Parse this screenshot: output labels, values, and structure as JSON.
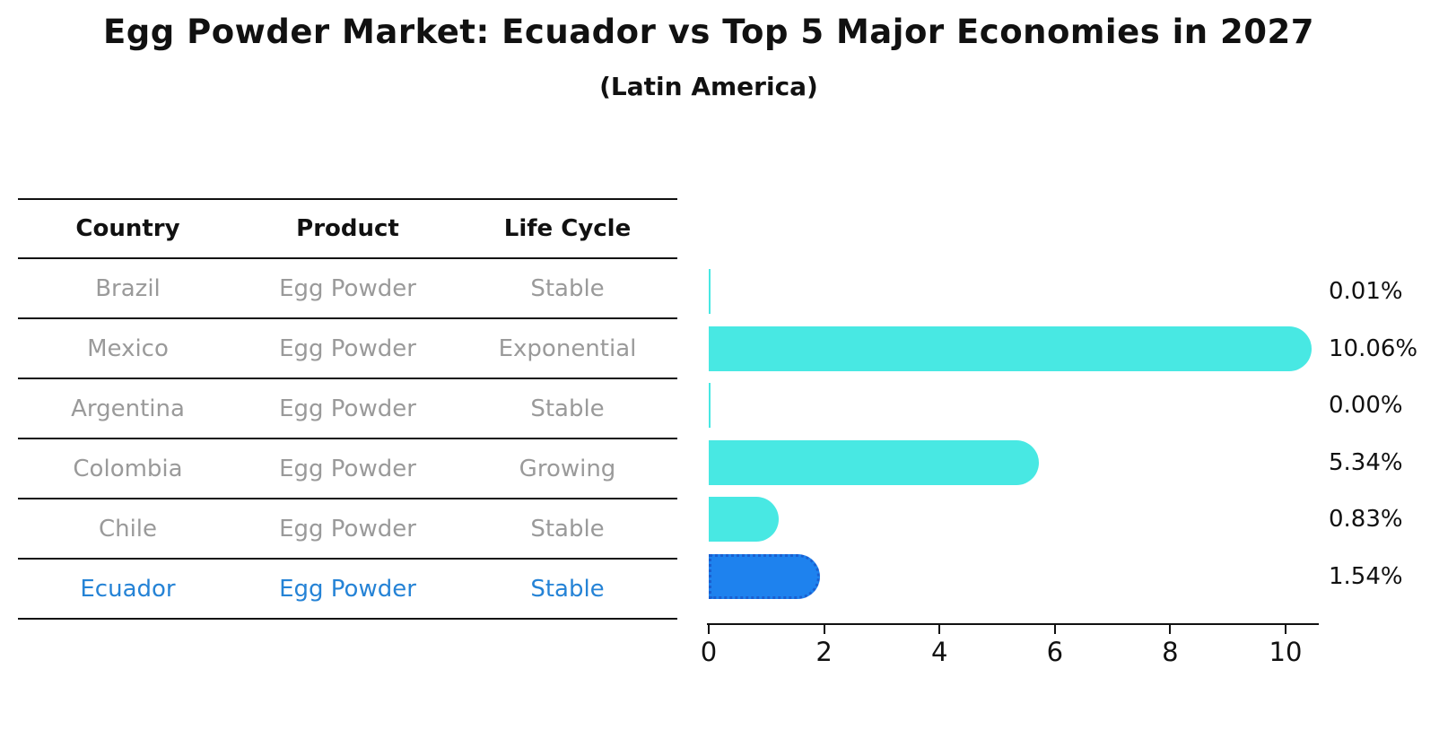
{
  "page": {
    "title": "Egg Powder Market: Ecuador vs Top 5 Major Economies in 2027",
    "subtitle": "(Latin America)"
  },
  "table": {
    "headers": [
      "Country",
      "Product",
      "Life Cycle"
    ],
    "rows": [
      {
        "country": "Brazil",
        "product": "Egg Powder",
        "life_cycle": "Stable",
        "highlighted": false
      },
      {
        "country": "Mexico",
        "product": "Egg Powder",
        "life_cycle": "Exponential",
        "highlighted": false
      },
      {
        "country": "Argentina",
        "product": "Egg Powder",
        "life_cycle": "Stable",
        "highlighted": false
      },
      {
        "country": "Colombia",
        "product": "Egg Powder",
        "life_cycle": "Growing",
        "highlighted": false
      },
      {
        "country": "Chile",
        "product": "Egg Powder",
        "life_cycle": "Stable",
        "highlighted": false
      },
      {
        "country": "Ecuador",
        "product": "Egg Powder",
        "life_cycle": "Stable",
        "highlighted": true
      }
    ]
  },
  "chart_data": {
    "type": "bar",
    "orientation": "horizontal",
    "title": "Egg Powder Market: Ecuador vs Top 5 Major Economies in 2027",
    "subtitle": "(Latin America)",
    "categories": [
      "Brazil",
      "Mexico",
      "Argentina",
      "Colombia",
      "Chile",
      "Ecuador"
    ],
    "values": [
      0.01,
      10.06,
      0.0,
      5.34,
      0.83,
      1.54
    ],
    "value_labels": [
      "0.01%",
      "10.06%",
      "0.00%",
      "5.34%",
      "0.83%",
      "1.54%"
    ],
    "unit": "percent CAGR",
    "x_ticks": [
      0,
      2,
      4,
      6,
      8,
      10
    ],
    "xlim": [
      0,
      10.6
    ],
    "grid": false,
    "legend": false,
    "highlight_category": "Ecuador",
    "colors": {
      "bar": "#48e8e3",
      "highlight_bar": "#1e82ee",
      "highlight_border": "#1a5fd0",
      "row_text": "#9a9a9a",
      "highlight_text": "#2583d6",
      "header_text": "#111111",
      "value_text": "#111111",
      "axis": "#111111"
    }
  }
}
